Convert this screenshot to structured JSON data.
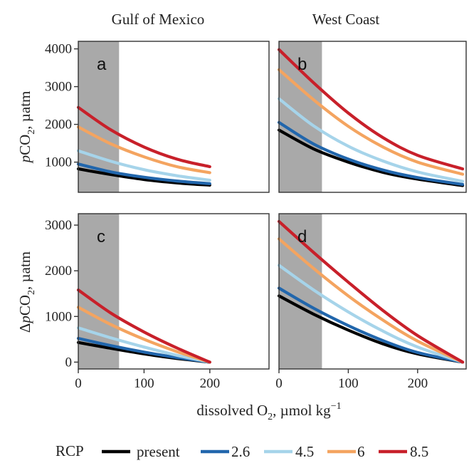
{
  "chart_data": {
    "type": "line",
    "columns": [
      "Gulf of Mexico",
      "West Coast"
    ],
    "xlabel": "dissolved O₂, µmol kg⁻¹",
    "ylabel_top": "pCO₂, µatm",
    "ylabel_bottom": "ΔpCO₂, µatm",
    "x_ticks": [
      "0",
      "100",
      "200"
    ],
    "y_ticks_top": [
      "1000",
      "2000",
      "3000",
      "4000"
    ],
    "y_ticks_bottom": [
      "0",
      "1000",
      "2000",
      "3000"
    ],
    "legend_title": "RCP",
    "series_names": [
      "present",
      "2.6",
      "4.5",
      "6",
      "8.5"
    ],
    "colors": {
      "present": "#000000",
      "2.6": "#2166ac",
      "4.5": "#a6d4ea",
      "6": "#f4a460",
      "8.5": "#c8202a",
      "shade": "#a9a9a9"
    },
    "hypoxic_threshold_o2": 62,
    "panels": [
      {
        "letter": "a",
        "region": "Gulf of Mexico",
        "quantity": "pCO2",
        "xlim": [
          0,
          290
        ],
        "ylim": [
          200,
          4200
        ],
        "x": [
          0,
          50,
          100,
          150,
          200
        ],
        "series": [
          {
            "name": "present",
            "values": [
              820,
              670,
              540,
              450,
              390
            ]
          },
          {
            "name": "2.6",
            "values": [
              950,
              740,
              600,
              500,
              430
            ]
          },
          {
            "name": "4.5",
            "values": [
              1300,
              1020,
              800,
              640,
              520
            ]
          },
          {
            "name": "6",
            "values": [
              1930,
              1480,
              1140,
              880,
              720
            ]
          },
          {
            "name": "8.5",
            "values": [
              2450,
              1850,
              1400,
              1080,
              880
            ]
          }
        ]
      },
      {
        "letter": "b",
        "region": "West Coast",
        "quantity": "pCO2",
        "xlim": [
          0,
          270
        ],
        "ylim": [
          200,
          4200
        ],
        "x": [
          0,
          50,
          100,
          150,
          200,
          265
        ],
        "series": [
          {
            "name": "present",
            "values": [
              1850,
              1350,
              1000,
              730,
              550,
              380
            ]
          },
          {
            "name": "2.6",
            "values": [
              2050,
              1480,
              1080,
              790,
              590,
              410
            ]
          },
          {
            "name": "4.5",
            "values": [
              2680,
              1960,
              1420,
              1030,
              740,
              490
            ]
          },
          {
            "name": "6",
            "values": [
              3450,
              2650,
              1950,
              1400,
              1000,
              680
            ]
          },
          {
            "name": "8.5",
            "values": [
              3980,
              3100,
              2300,
              1650,
              1180,
              820
            ]
          }
        ]
      },
      {
        "letter": "c",
        "region": "Gulf of Mexico",
        "quantity": "ΔpCO2",
        "xlim": [
          0,
          290
        ],
        "ylim": [
          -150,
          3250
        ],
        "x": [
          0,
          50,
          100,
          150,
          200
        ],
        "series": [
          {
            "name": "present",
            "values": [
              430,
              300,
              180,
              80,
              0
            ]
          },
          {
            "name": "2.6",
            "values": [
              520,
              360,
              220,
              100,
              0
            ]
          },
          {
            "name": "4.5",
            "values": [
              750,
              530,
              330,
              150,
              0
            ]
          },
          {
            "name": "6",
            "values": [
              1200,
              820,
              500,
              230,
              0
            ]
          },
          {
            "name": "8.5",
            "values": [
              1580,
              1070,
              660,
              310,
              0
            ]
          }
        ]
      },
      {
        "letter": "d",
        "region": "West Coast",
        "quantity": "ΔpCO2",
        "xlim": [
          0,
          270
        ],
        "ylim": [
          -150,
          3250
        ],
        "x": [
          0,
          50,
          100,
          150,
          200,
          265
        ],
        "series": [
          {
            "name": "present",
            "values": [
              1450,
              1050,
              700,
              400,
              180,
              0
            ]
          },
          {
            "name": "2.6",
            "values": [
              1620,
              1180,
              800,
              470,
              210,
              0
            ]
          },
          {
            "name": "4.5",
            "values": [
              2120,
              1580,
              1100,
              680,
              330,
              0
            ]
          },
          {
            "name": "6",
            "values": [
              2700,
              2050,
              1450,
              920,
              460,
              0
            ]
          },
          {
            "name": "8.5",
            "values": [
              3080,
              2400,
              1750,
              1130,
              580,
              0
            ]
          }
        ]
      }
    ]
  }
}
